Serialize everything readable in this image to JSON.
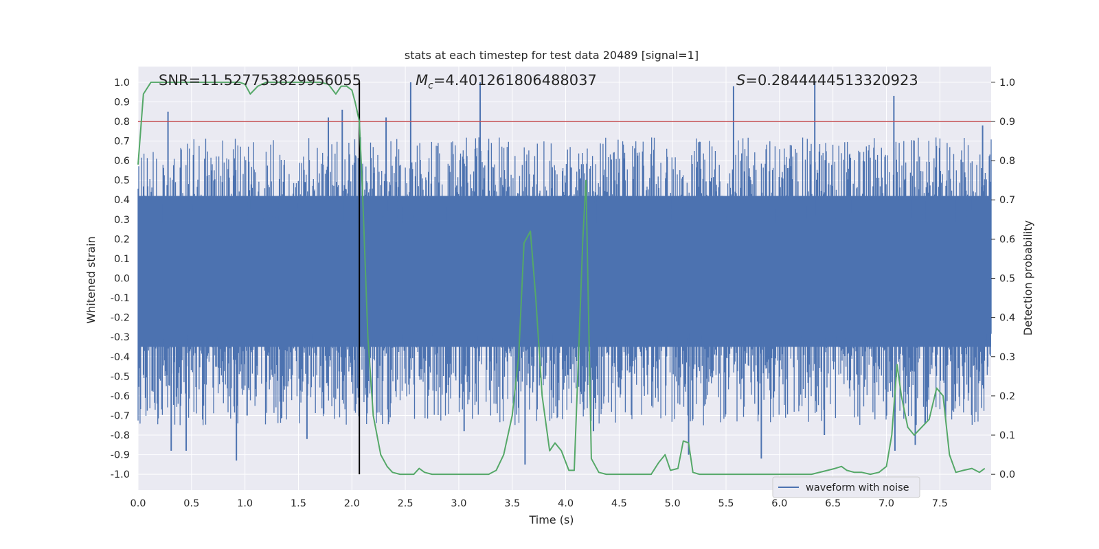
{
  "chart_data": {
    "type": "line",
    "title": "stats at each timestep for test data 20489 [signal=1]",
    "xlabel": "Time (s)",
    "ylabel": "Whitened strain",
    "ylabel_right": "Detection probability",
    "xlim": [
      0,
      7.98
    ],
    "xticks": [
      "0.0",
      "0.5",
      "1.0",
      "1.5",
      "2.0",
      "2.5",
      "3.0",
      "3.5",
      "4.0",
      "4.5",
      "5.0",
      "5.5",
      "6.0",
      "6.5",
      "7.0",
      "7.5"
    ],
    "ylim": [
      -1.08,
      1.08
    ],
    "yticks": [
      "1.0",
      "0.9",
      "0.8",
      "0.7",
      "0.6",
      "0.5",
      "0.4",
      "0.3",
      "0.2",
      "0.1",
      "0.0",
      "-0.1",
      "-0.2",
      "-0.3",
      "-0.4",
      "-0.5",
      "-0.6",
      "-0.7",
      "-0.8",
      "-0.9",
      "-1.0"
    ],
    "ylim_right": [
      -0.04,
      1.04
    ],
    "yticks_right": [
      "1.0",
      "0.9",
      "0.8",
      "0.7",
      "0.6",
      "0.5",
      "0.4",
      "0.3",
      "0.2",
      "0.1",
      "0.0"
    ],
    "grid": true,
    "legend": {
      "position": "lower right",
      "entries": [
        "waveform with noise"
      ]
    },
    "annotations": {
      "snr": "SNR=11.527753829956055",
      "mc_symbol": "M",
      "mc_sub": "c",
      "mc_value": "=4.401261806488037",
      "s_symbol": "S",
      "s_value": "=0.2844444513320923"
    },
    "threshold": {
      "value": 0.9,
      "axis": "right",
      "color": "#c44e52"
    },
    "marker": {
      "x": 2.07,
      "color": "#000000"
    },
    "waveform_envelope": {
      "name": "waveform with noise",
      "color": "#4c72b0",
      "dense_band": [
        -0.35,
        0.42
      ],
      "typical_peaks": [
        -0.75,
        0.72
      ],
      "spikes": [
        {
          "x": 0.28,
          "y": 0.85
        },
        {
          "x": 0.31,
          "y": -0.88
        },
        {
          "x": 0.45,
          "y": -0.88
        },
        {
          "x": 0.92,
          "y": -0.93
        },
        {
          "x": 1.02,
          "y": -0.7
        },
        {
          "x": 1.58,
          "y": -0.82
        },
        {
          "x": 1.78,
          "y": 0.82
        },
        {
          "x": 1.91,
          "y": 0.86
        },
        {
          "x": 2.32,
          "y": 0.82
        },
        {
          "x": 2.55,
          "y": 1.0
        },
        {
          "x": 3.2,
          "y": 1.0
        },
        {
          "x": 3.05,
          "y": -0.78
        },
        {
          "x": 3.62,
          "y": -0.95
        },
        {
          "x": 4.26,
          "y": -0.78
        },
        {
          "x": 5.15,
          "y": -0.9
        },
        {
          "x": 5.57,
          "y": 0.98
        },
        {
          "x": 5.83,
          "y": -0.92
        },
        {
          "x": 6.33,
          "y": 1.0
        },
        {
          "x": 6.42,
          "y": -0.8
        },
        {
          "x": 7.07,
          "y": 0.93
        },
        {
          "x": 7.08,
          "y": -0.88
        },
        {
          "x": 7.27,
          "y": -0.85
        },
        {
          "x": 7.9,
          "y": 0.78
        }
      ]
    },
    "series": [
      {
        "name": "Detection probability",
        "axis": "right",
        "color": "#55a868",
        "x": [
          0.0,
          0.05,
          0.12,
          0.2,
          0.35,
          0.5,
          0.65,
          0.75,
          0.85,
          0.95,
          1.0,
          1.05,
          1.12,
          1.2,
          1.3,
          1.4,
          1.5,
          1.6,
          1.7,
          1.78,
          1.85,
          1.9,
          1.95,
          2.0,
          2.03,
          2.07,
          2.1,
          2.15,
          2.2,
          2.27,
          2.33,
          2.38,
          2.45,
          2.52,
          2.58,
          2.63,
          2.68,
          2.75,
          2.85,
          3.0,
          3.15,
          3.28,
          3.35,
          3.42,
          3.5,
          3.56,
          3.61,
          3.67,
          3.72,
          3.78,
          3.85,
          3.9,
          3.96,
          4.03,
          4.08,
          4.12,
          4.16,
          4.19,
          4.24,
          4.31,
          4.38,
          4.5,
          4.65,
          4.8,
          4.87,
          4.93,
          4.98,
          5.05,
          5.1,
          5.15,
          5.19,
          5.25,
          5.35,
          5.5,
          5.7,
          5.9,
          6.1,
          6.3,
          6.45,
          6.52,
          6.58,
          6.63,
          6.7,
          6.77,
          6.85,
          6.93,
          7.0,
          7.05,
          7.1,
          7.14,
          7.2,
          7.26,
          7.33,
          7.4,
          7.47,
          7.53,
          7.59,
          7.65,
          7.72,
          7.8,
          7.87,
          7.92
        ],
        "values": [
          0.79,
          0.97,
          1.0,
          1.0,
          1.0,
          1.0,
          1.0,
          1.0,
          1.0,
          1.0,
          0.995,
          0.97,
          0.99,
          1.0,
          1.0,
          1.0,
          1.0,
          1.0,
          1.0,
          0.995,
          0.97,
          0.99,
          0.99,
          0.98,
          0.95,
          0.9,
          0.72,
          0.35,
          0.15,
          0.05,
          0.02,
          0.005,
          0.0,
          0.0,
          0.0,
          0.015,
          0.005,
          0.0,
          0.0,
          0.0,
          0.0,
          0.0,
          0.01,
          0.05,
          0.15,
          0.3,
          0.59,
          0.62,
          0.45,
          0.2,
          0.06,
          0.08,
          0.06,
          0.01,
          0.01,
          0.3,
          0.6,
          0.75,
          0.04,
          0.005,
          0.0,
          0.0,
          0.0,
          0.0,
          0.03,
          0.05,
          0.01,
          0.015,
          0.085,
          0.08,
          0.005,
          0.0,
          0.0,
          0.0,
          0.0,
          0.0,
          0.0,
          0.0,
          0.01,
          0.015,
          0.02,
          0.01,
          0.005,
          0.005,
          0.0,
          0.005,
          0.02,
          0.1,
          0.28,
          0.2,
          0.12,
          0.1,
          0.12,
          0.14,
          0.22,
          0.2,
          0.05,
          0.005,
          0.01,
          0.015,
          0.005,
          0.015
        ]
      }
    ]
  }
}
